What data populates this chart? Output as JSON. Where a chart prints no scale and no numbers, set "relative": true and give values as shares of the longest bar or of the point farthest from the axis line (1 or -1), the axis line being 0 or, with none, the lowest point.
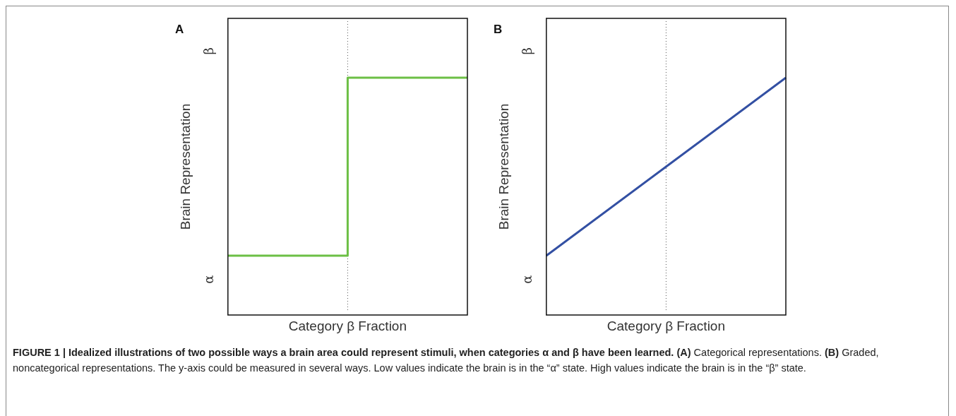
{
  "chart_data": [
    {
      "type": "step",
      "title": "A",
      "xlabel": "Category β Fraction",
      "ylabel": "Brain Representation",
      "categories": [
        null,
        null,
        null
      ],
      "relative": true,
      "grid": false,
      "series": [
        {
          "color": "#6cbf45",
          "values": [
            0.25,
            1,
            1
          ]
        }
      ],
      "annotations": [
        "α",
        "β",
        "FIGURE 1 | Idealized illustrations of two possible ways a brain area could represent stimuli, when categories α and β have been learned.",
        "(A)",
        "Categorical representations.",
        "(B)",
        "Graded, noncategorical representations. The y-axis could be measured in several ways. Low values indicate the brain is in the “α” state. High values indicate the brain is in the “β” state."
      ]
    },
    {
      "type": "line",
      "title": "B",
      "xlabel": "Category β Fraction",
      "ylabel": "Brain Representation",
      "categories": [
        null,
        null,
        null
      ],
      "relative": true,
      "grid": false,
      "series": [
        {
          "color": "#3350a3",
          "values": [
            0.25,
            0.625,
            1
          ]
        }
      ],
      "annotations": [
        "α",
        "β"
      ]
    }
  ]
}
